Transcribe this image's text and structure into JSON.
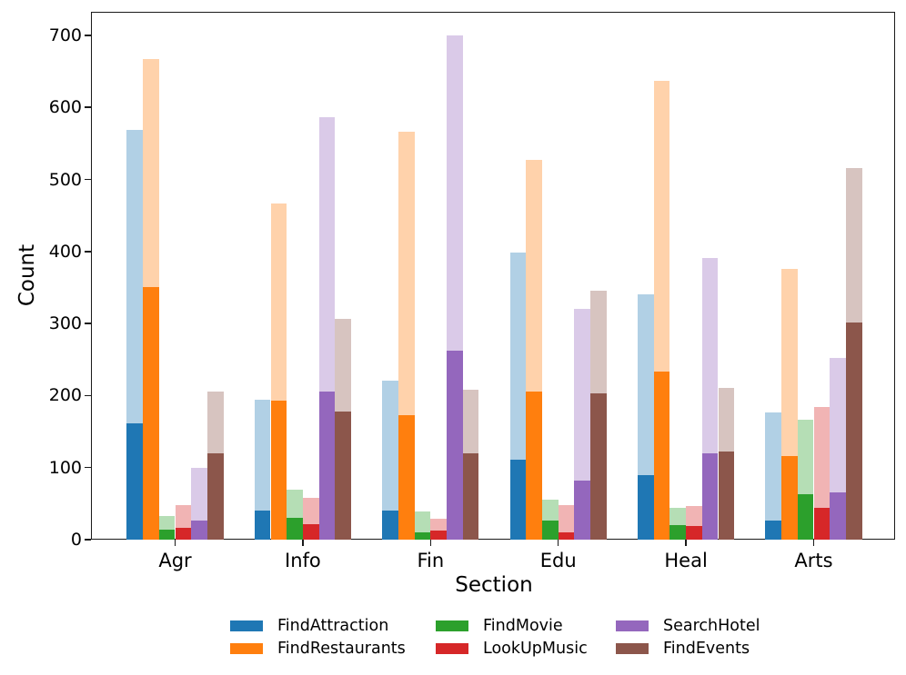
{
  "chart_data": {
    "type": "bar",
    "variant": "grouped bars, each series drawn twice: translucent full bar (alpha 0.35) with opaque sub-count bar overlaid",
    "title": "",
    "xlabel": "Section",
    "ylabel": "Count",
    "categories": [
      "Agr",
      "Info",
      "Fin",
      "Edu",
      "Heal",
      "Arts"
    ],
    "yticks": [
      0,
      100,
      200,
      300,
      400,
      500,
      600,
      700
    ],
    "ylim": [
      0,
      732.7
    ],
    "grid": false,
    "light_bar_alpha": 0.35,
    "legend_position": "below chart, 3 columns x 2 rows",
    "series": [
      {
        "name": "FindAttraction",
        "color": "#1f77b4",
        "light_values": [
          569,
          194,
          221,
          398,
          341,
          176
        ],
        "solid_values": [
          162,
          41,
          40,
          111,
          89,
          27
        ]
      },
      {
        "name": "FindRestaurants",
        "color": "#ff7f0e",
        "light_values": [
          667,
          467,
          566,
          527,
          637,
          376
        ],
        "solid_values": [
          350,
          193,
          173,
          206,
          233,
          116
        ]
      },
      {
        "name": "FindMovie",
        "color": "#2ca02c",
        "light_values": [
          33,
          69,
          39,
          55,
          44,
          166
        ],
        "solid_values": [
          14,
          30,
          10,
          26,
          20,
          63
        ]
      },
      {
        "name": "LookUpMusic",
        "color": "#d62728",
        "light_values": [
          48,
          58,
          29,
          48,
          47,
          184
        ],
        "solid_values": [
          16,
          21,
          13,
          10,
          19,
          44
        ]
      },
      {
        "name": "SearchHotel",
        "color": "#9467bd",
        "light_values": [
          100,
          587,
          700,
          320,
          391,
          252
        ],
        "solid_values": [
          26,
          206,
          262,
          82,
          120,
          66
        ]
      },
      {
        "name": "FindEvents",
        "color": "#8c564b",
        "light_values": [
          205,
          307,
          208,
          346,
          211,
          516
        ],
        "solid_values": [
          120,
          178,
          120,
          203,
          122,
          301
        ]
      }
    ]
  }
}
